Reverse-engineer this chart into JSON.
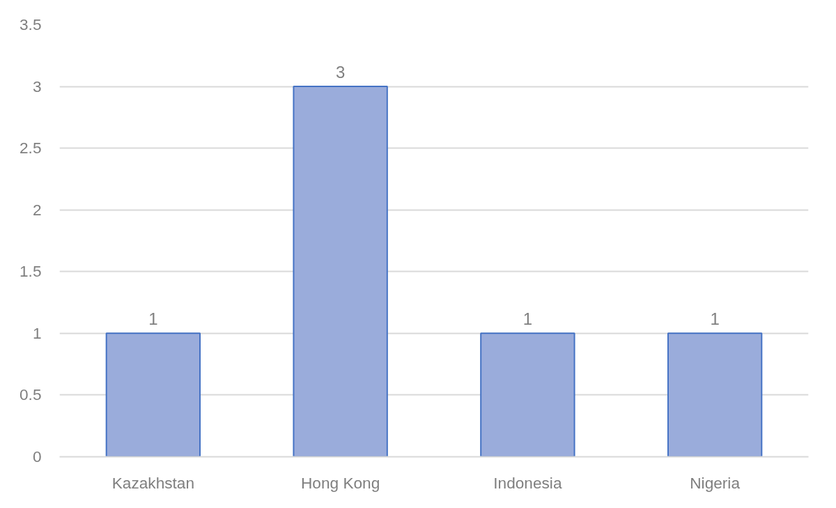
{
  "chart_data": {
    "type": "bar",
    "categories": [
      "Kazakhstan",
      "Hong Kong",
      "Indonesia",
      "Nigeria"
    ],
    "values": [
      1,
      3,
      1,
      1
    ],
    "color": "#9aacdb",
    "ylim": [
      0,
      3.5
    ],
    "yticks": [
      0,
      0.5,
      1,
      1.5,
      2,
      2.5,
      3,
      3.5
    ],
    "grid": "y",
    "data_labels": true
  }
}
